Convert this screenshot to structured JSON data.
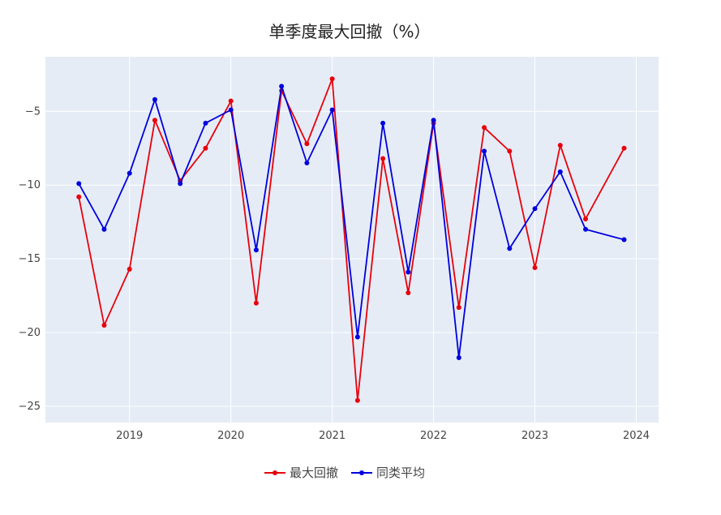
{
  "chart_data": {
    "type": "line",
    "title": "单季度最大回撤（%）",
    "xlabel": "",
    "ylabel": "",
    "x_ticks": [
      "2019",
      "2020",
      "2021",
      "2022",
      "2023",
      "2024"
    ],
    "y_ticks": [
      -5,
      -10,
      -15,
      -20,
      -25
    ],
    "xlim": [
      2018.17,
      2024.22
    ],
    "ylim": [
      -26.1,
      -1.3
    ],
    "grid": true,
    "legend_position": "bottom-center",
    "x": [
      2018.5,
      2018.75,
      2019.0,
      2019.25,
      2019.5,
      2019.75,
      2020.0,
      2020.25,
      2020.5,
      2020.75,
      2021.0,
      2021.25,
      2021.5,
      2021.75,
      2022.0,
      2022.25,
      2022.5,
      2022.75,
      2023.0,
      2023.25,
      2023.5,
      2023.88
    ],
    "series": [
      {
        "name": "最大回撤",
        "color": "#e8000b",
        "values": [
          -10.8,
          -19.5,
          -15.7,
          -5.6,
          -9.7,
          -7.5,
          -4.3,
          -18.0,
          -3.6,
          -7.2,
          -2.8,
          -24.6,
          -8.2,
          -17.3,
          -5.8,
          -18.3,
          -6.1,
          -7.7,
          -15.6,
          -7.3,
          -12.3,
          -7.5
        ]
      },
      {
        "name": "同类平均",
        "color": "#0000dd",
        "values": [
          -9.9,
          -13.0,
          -9.2,
          -4.2,
          -9.9,
          -5.8,
          -4.9,
          -14.4,
          -3.3,
          -8.5,
          -4.9,
          -20.3,
          -5.8,
          -15.9,
          -5.6,
          -21.7,
          -7.7,
          -14.3,
          -11.6,
          -9.1,
          -13.0,
          -13.7
        ]
      }
    ]
  }
}
